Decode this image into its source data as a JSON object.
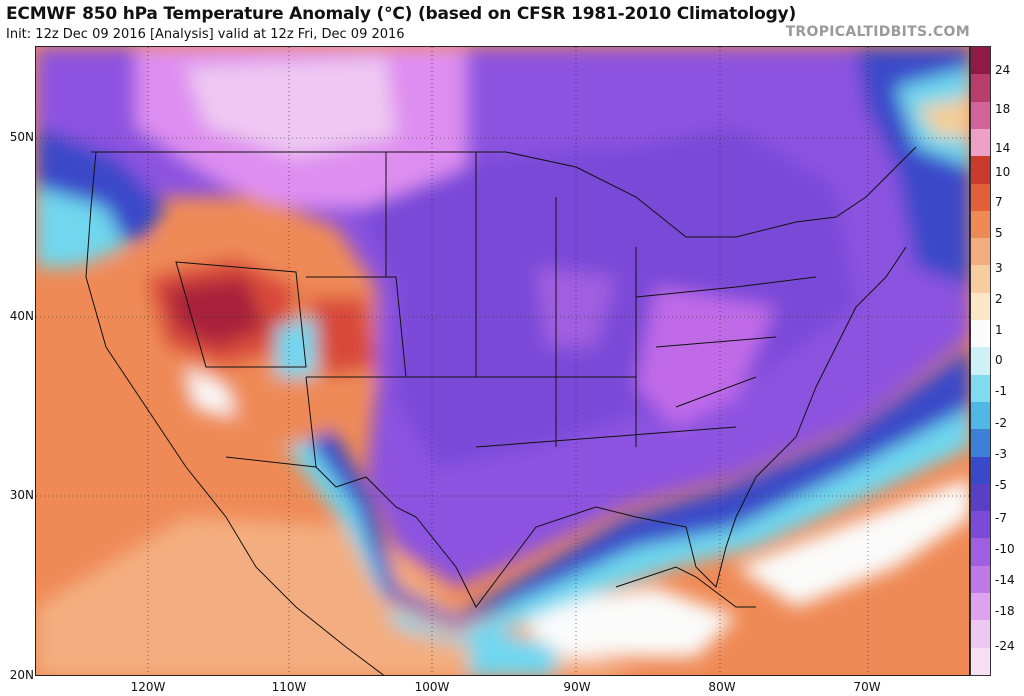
{
  "header": {
    "title": "ECMWF 850 hPa Temperature Anomaly (°C) (based on CFSR 1981-2010 Climatology)",
    "subtitle": "Init: 12z Dec 09 2016   [Analysis]   valid at 12z Fri, Dec 09 2016",
    "brand": "TROPICALTIDBITS.COM"
  },
  "map": {
    "latitude_labels": [
      "50N",
      "40N",
      "30N",
      "20N"
    ],
    "longitude_labels": [
      "120W",
      "110W",
      "100W",
      "90W",
      "80W",
      "70W"
    ],
    "colors": {
      "deep_purple": "#6a3fc8",
      "purple": "#8c52e0",
      "magenta": "#c06be8",
      "pink": "#de8ef0",
      "blue": "#3a49c9",
      "cyan": "#6fd7ef",
      "white": "#fbfbfb",
      "tan": "#f4cf99",
      "orange": "#ef8a56",
      "red": "#d9493a",
      "maroon": "#a8203a"
    }
  },
  "colorbar": {
    "labels": [
      "24",
      "18",
      "14",
      "10",
      "7",
      "5",
      "3",
      "2",
      "1",
      "0",
      "-1",
      "-2",
      "-3",
      "-5",
      "-7",
      "-10",
      "-14",
      "-18",
      "-24"
    ],
    "colors": [
      "#8e1a47",
      "#b83d6c",
      "#d3639a",
      "#eea0c6",
      "#ca3b2e",
      "#e1603a",
      "#ee8a56",
      "#f4ad80",
      "#f7cc9f",
      "#fbe6c6",
      "#fbfbfb",
      "#cdf1f7",
      "#7fdbef",
      "#4fb8e6",
      "#3d80d6",
      "#3a49c9",
      "#5a3fc5",
      "#7a4ad8",
      "#a05fe0",
      "#c07ae8",
      "#dda3ef",
      "#eec8f2",
      "#f6dff2"
    ]
  }
}
